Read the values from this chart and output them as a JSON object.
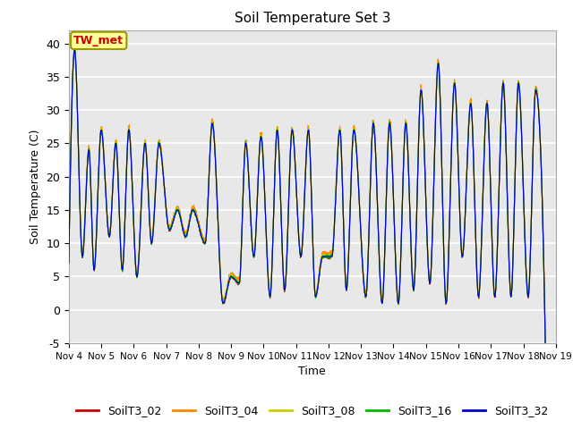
{
  "title": "Soil Temperature Set 3",
  "xlabel": "Time",
  "ylabel": "Soil Temperature (C)",
  "ylim": [
    -5,
    42
  ],
  "yticks": [
    -5,
    0,
    5,
    10,
    15,
    20,
    25,
    30,
    35,
    40
  ],
  "series_labels": [
    "SoilT3_02",
    "SoilT3_04",
    "SoilT3_08",
    "SoilT3_16",
    "SoilT3_32"
  ],
  "series_colors": [
    "#cc0000",
    "#ff8800",
    "#cccc00",
    "#00bb00",
    "#0000cc"
  ],
  "annotation_text": "TW_met",
  "annotation_bg": "#ffff99",
  "annotation_border": "#999900",
  "bg_color": "#e8e8e8",
  "xtick_labels": [
    "Nov 4",
    "Nov 5",
    "Nov 6",
    "Nov 7",
    "Nov 8",
    "Nov 9",
    "Nov 10",
    "Nov 11",
    "Nov 12",
    "Nov 13",
    "Nov 14",
    "Nov 15",
    "Nov 16",
    "Nov 17",
    "Nov 18",
    "Nov 19"
  ],
  "xtick_positions": [
    0,
    1,
    2,
    3,
    4,
    5,
    6,
    7,
    8,
    9,
    10,
    11,
    12,
    13,
    14,
    15
  ],
  "peak_times": [
    0.18,
    0.62,
    1.0,
    1.45,
    1.85,
    2.35,
    2.78,
    3.35,
    3.82,
    4.42,
    5.0,
    5.45,
    5.92,
    6.42,
    6.88,
    7.38,
    7.82,
    8.35,
    8.78,
    9.38,
    9.88,
    10.38,
    10.85,
    11.38,
    11.88,
    12.38,
    12.88,
    13.38,
    13.85,
    14.38
  ],
  "peak_vals": [
    39,
    24,
    27,
    25,
    27,
    25,
    25,
    15,
    15,
    28,
    5,
    25,
    26,
    27,
    27,
    27,
    8,
    27,
    27,
    28,
    28,
    28,
    33,
    37,
    34,
    31,
    31,
    34,
    34,
    33
  ],
  "valley_times": [
    0.0,
    0.42,
    0.78,
    1.25,
    1.65,
    2.1,
    2.55,
    3.1,
    3.6,
    4.2,
    4.75,
    5.25,
    5.7,
    6.2,
    6.65,
    7.15,
    7.6,
    8.1,
    8.55,
    9.15,
    9.65,
    10.15,
    10.62,
    11.12,
    11.62,
    12.12,
    12.62,
    13.12,
    13.62,
    14.15,
    14.65
  ],
  "valley_vals": [
    7,
    8,
    6,
    11,
    6,
    5,
    10,
    12,
    11,
    10,
    1,
    4,
    8,
    2,
    3,
    8,
    2,
    8,
    3,
    2,
    1,
    1,
    3,
    4,
    1,
    8,
    2,
    2,
    2,
    2,
    2
  ]
}
